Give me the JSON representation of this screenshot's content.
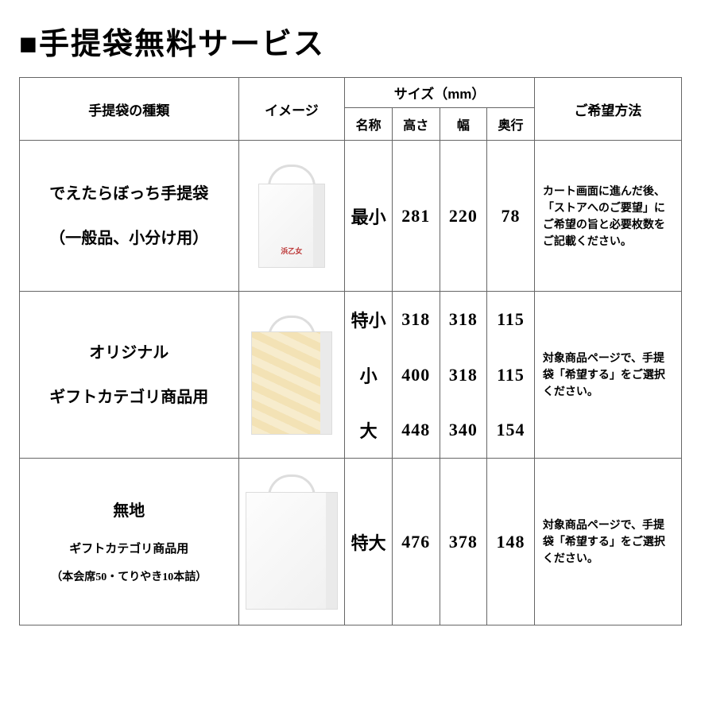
{
  "title": "■手提袋無料サービス",
  "headers": {
    "type": "手提袋の種類",
    "image": "イメージ",
    "size_group": "サイズ（mm）",
    "size_name": "名称",
    "size_h": "高さ",
    "size_w": "幅",
    "size_d": "奥行",
    "note": "ご希望方法"
  },
  "rows": [
    {
      "type_main": "でえたらぼっち手提袋",
      "type_sub": "（一般品、小分け用）",
      "bag_variant": "white-logo",
      "sizes": [
        {
          "name": "最小",
          "h": "281",
          "w": "220",
          "d": "78"
        }
      ],
      "note": "カート画面に進んだ後、「ストアへのご要望」にご希望の旨と必要枚数をご記載ください。"
    },
    {
      "type_main": "オリジナル",
      "type_sub": "ギフトカテゴリ商品用",
      "bag_variant": "gold",
      "sizes": [
        {
          "name": "特小",
          "h": "318",
          "w": "318",
          "d": "115"
        },
        {
          "name": "小",
          "h": "400",
          "w": "318",
          "d": "115"
        },
        {
          "name": "大",
          "h": "448",
          "w": "340",
          "d": "154"
        }
      ],
      "note": "対象商品ページで、手提袋「希望する」をご選択ください。"
    },
    {
      "type_main": "無地",
      "type_sub": "ギフトカテゴリ商品用",
      "type_sub2": "（本会席50・てりやき10本詰）",
      "bag_variant": "plain-tall",
      "sizes": [
        {
          "name": "特大",
          "h": "476",
          "w": "378",
          "d": "148"
        }
      ],
      "note": "対象商品ページで、手提袋「希望する」をご選択ください。"
    }
  ],
  "colors": {
    "border": "#666666",
    "text": "#000000",
    "background": "#ffffff",
    "bag_gold": "#f3e2b5",
    "bag_white": "#f7f7f7",
    "logo_red": "#b33333"
  }
}
